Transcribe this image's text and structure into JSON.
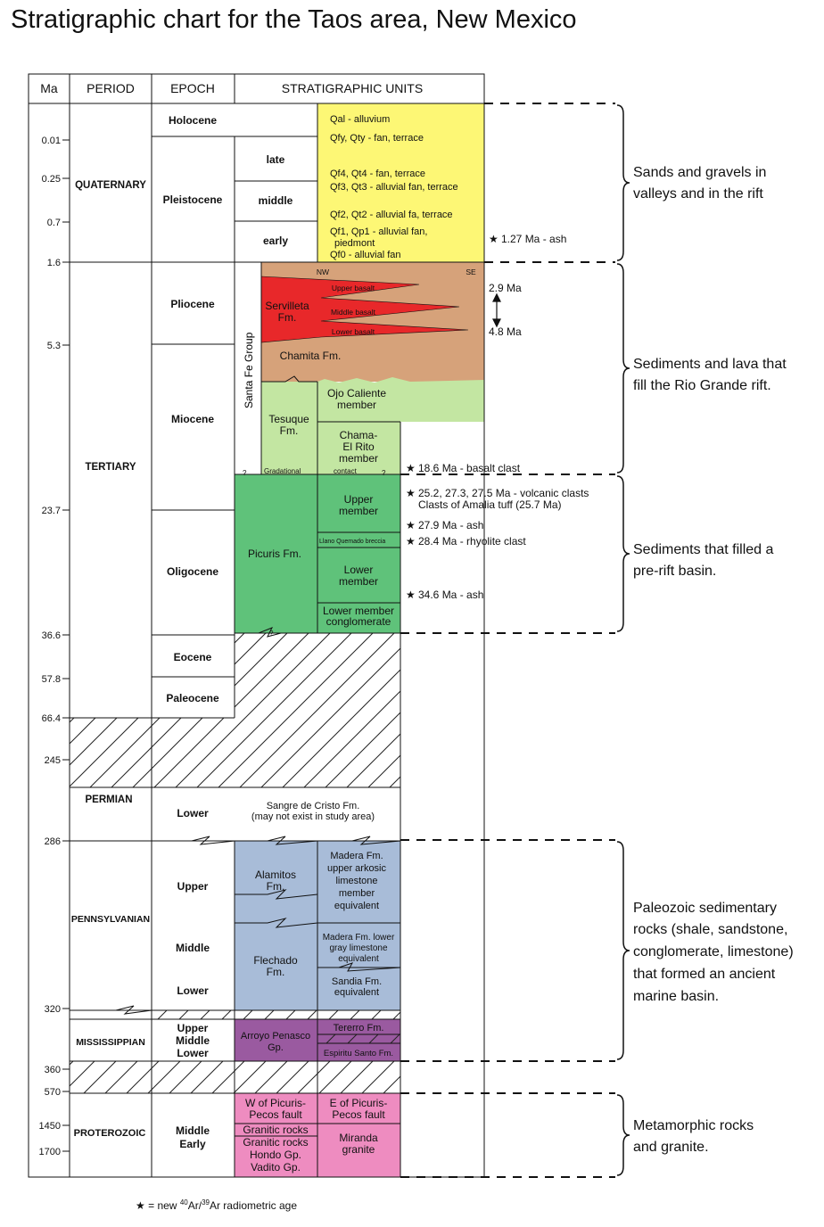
{
  "title": "Stratigraphic chart for the Taos area, New Mexico",
  "headers": {
    "ma": "Ma",
    "period": "PERIOD",
    "epoch": "EPOCH",
    "units": "STRATIGRAPHIC UNITS"
  },
  "ages": [
    "0.01",
    "0.25",
    "0.7",
    "1.6",
    "5.3",
    "23.7",
    "36.6",
    "57.8",
    "66.4",
    "245",
    "286",
    "320",
    "360",
    "570",
    "1450",
    "1700"
  ],
  "periods": {
    "quaternary": "QUATERNARY",
    "tertiary": "TERTIARY",
    "permian": "PERMIAN",
    "pennsylvanian": "PENNSYLVANIAN",
    "mississippian": "MISSISSIPPIAN",
    "proterozoic": "PROTEROZOIC"
  },
  "epochs": {
    "holocene": "Holocene",
    "pleistocene": "Pleistocene",
    "late": "late",
    "middle": "middle",
    "early": "early",
    "pliocene": "Pliocene",
    "miocene": "Miocene",
    "oligocene": "Oligocene",
    "eocene": "Eocene",
    "paleocene": "Paleocene",
    "permian_lower": "Lower",
    "penn_upper": "Upper",
    "penn_middle": "Middle",
    "penn_lower": "Lower",
    "miss_upper": "Upper",
    "miss_middle": "Middle",
    "miss_lower": "Lower",
    "prot_middle": "Middle",
    "prot_early": "Early"
  },
  "quaternary_units": {
    "qal": "Qal - alluvium",
    "qfy": "Qfy, Qty - fan, terrace",
    "qf4": "Qf4, Qt4 - fan, terrace",
    "qf3": "Qf3, Qt3 - alluvial fan, terrace",
    "qf2": "Qf2, Qt2 - alluvial fa, terrace",
    "qf1": "Qf1, Qp1 - alluvial fan,",
    "piedmont": "piedmont",
    "qf0": "Qf0 - alluvial fan"
  },
  "tertiary_units": {
    "nw": "NW",
    "se": "SE",
    "upper_basalt": "Upper basalt",
    "middle_basalt": "Middle basalt",
    "lower_basalt": "Lower basalt",
    "servilleta_1": "Servilleta",
    "servilleta_2": "Fm.",
    "chamita": "Chamita Fm.",
    "santa_fe": "Santa Fe Group",
    "tesuque_1": "Tesuque",
    "tesuque_2": "Fm.",
    "ojo_1": "Ojo Caliente",
    "ojo_2": "member",
    "chama_1": "Chama-",
    "chama_2": "El Rito",
    "chama_3": "member",
    "gradational": "Gradational",
    "contact": "contact",
    "q1": "?",
    "q2": "?",
    "q3": "?",
    "picuris": "Picuris Fm.",
    "upper_member_1": "Upper",
    "upper_member_2": "member",
    "llano": "Llano Quemado breccia",
    "lower_member_1": "Lower",
    "lower_member_2": "member",
    "lmc_1": "Lower member",
    "lmc_2": "conglomerate"
  },
  "paleozoic_units": {
    "sangre_1": "Sangre de Cristo Fm.",
    "sangre_2": "(may not exist in study area)",
    "alamitos_1": "Alamitos",
    "alamitos_2": "Fm.",
    "madera_u_1": "Madera Fm.",
    "madera_u_2": "upper arkosic",
    "madera_u_3": "limestone",
    "madera_u_4": "member",
    "madera_u_5": "equivalent",
    "flechado_1": "Flechado",
    "flechado_2": "Fm.",
    "madera_l_1": "Madera Fm. lower",
    "madera_l_2": "gray limestone",
    "madera_l_3": "equivalent",
    "sandia_1": "Sandia Fm.",
    "sandia_2": "equivalent",
    "arroyo_1": "Arroyo Penasco",
    "arroyo_2": "Gp.",
    "terrero": "Tererro Fm.",
    "espiritu": "Espiritu Santo Fm."
  },
  "proterozoic_units": {
    "w_1": "W of Picuris-",
    "w_2": "Pecos fault",
    "w_3": "Granitic rocks",
    "w_4": "Granitic rocks",
    "w_5": "Hondo Gp.",
    "w_6": "Vadito Gp.",
    "e_1": "E of Picuris-",
    "e_2": "Pecos fault",
    "e_3": "Miranda",
    "e_4": "granite"
  },
  "annotations": {
    "ash127": "1.27 Ma - ash",
    "ma29": "2.9 Ma",
    "ma48": "4.8 Ma",
    "clast186": "18.6 Ma - basalt clast",
    "volc": "25.2, 27.3, 27.5 Ma - volcanic clasts",
    "amalia": "Clasts of Amalia tuff (25.7 Ma)",
    "ash279": "27.9 Ma - ash",
    "rhyo": "28.4 Ma - rhyolite clast",
    "ash346": "34.6 Ma - ash",
    "star": "★"
  },
  "brackets": {
    "b1_1": "Sands and gravels in",
    "b1_2": "valleys and in the rift",
    "b2_1": "Sediments and lava that",
    "b2_2": "fill the Rio Grande rift.",
    "b3_1": "Sediments that filled a",
    "b3_2": "pre-rift basin.",
    "b4_1": "Paleozoic sedimentary",
    "b4_2": "rocks (shale, sandstone,",
    "b4_3": "conglomerate, limestone)",
    "b4_4": "that formed an ancient",
    "b4_5": "marine basin.",
    "b5_1": "Metamorphic rocks",
    "b5_2": "and granite."
  },
  "footnote": {
    "star": "★",
    "pre": "= new ",
    "sup1": "40",
    "mid": "Ar/",
    "sup2": "39",
    "post": "Ar radiometric age"
  },
  "colors": {
    "quaternary": "#fdf775",
    "brown": "#d6a27a",
    "red": "#e8282a",
    "lightgreen": "#c3e6a2",
    "green": "#5fc27a",
    "blue": "#a8bcd8",
    "purple": "#9a5aa0",
    "pink": "#ee8cc0"
  }
}
